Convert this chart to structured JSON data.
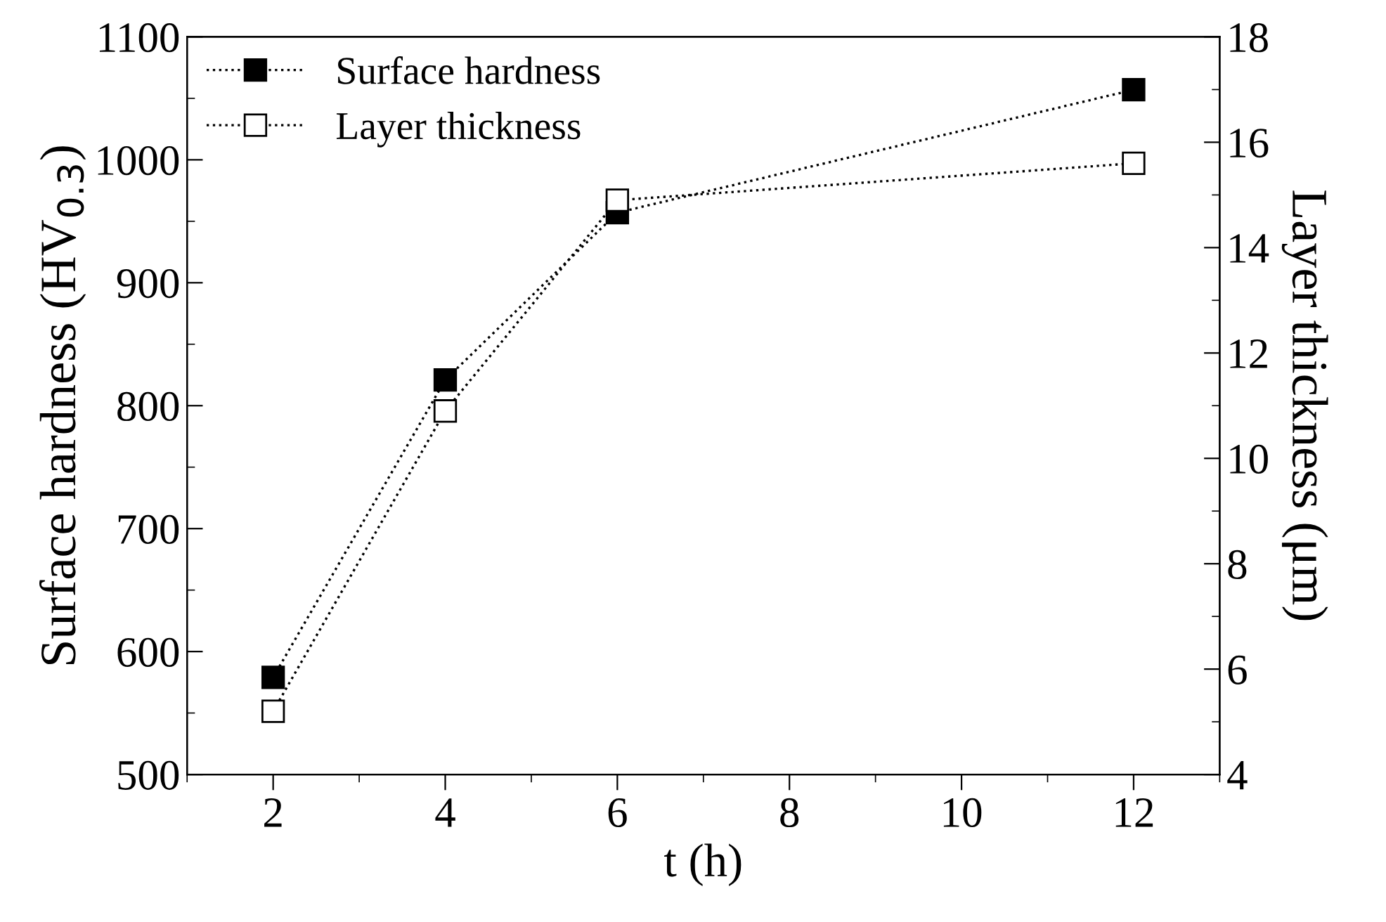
{
  "chart_data": {
    "type": "line",
    "xlabel": "t (h)",
    "ylabel": "Surface hardness (HV$_{0.3}$)",
    "y2label": "Layer thickness (μm)",
    "x": [
      2,
      4,
      6,
      12
    ],
    "series": [
      {
        "name": "Surface hardness",
        "color": "#000000",
        "values": [
          579,
          821,
          957,
          1057
        ]
      },
      {
        "name": "Layer thickness",
        "color": "#000000",
        "values": [
          5.2,
          10.9,
          14.9,
          15.6
        ],
        "axis": "y2"
      }
    ],
    "xlim": [
      1,
      13
    ],
    "xticks": [
      2,
      4,
      6,
      8,
      10,
      12
    ],
    "ylim": [
      500,
      1100
    ],
    "yticks": [
      500,
      600,
      700,
      800,
      900,
      1000,
      1100
    ],
    "y2lim": [
      4,
      18
    ],
    "y2ticks": [
      4,
      6,
      8,
      10,
      12,
      14,
      16,
      18
    ],
    "marker": "square",
    "line_style": "dotted",
    "legend": "top left",
    "grid": false
  }
}
